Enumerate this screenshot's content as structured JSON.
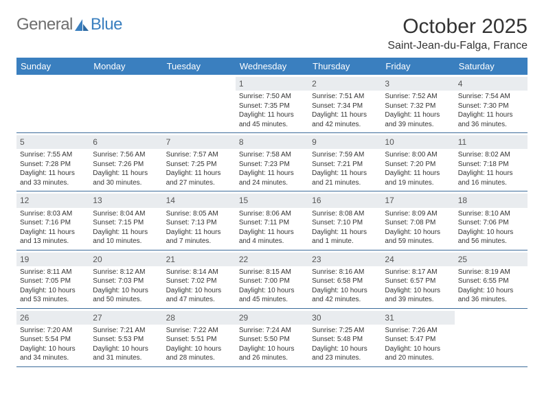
{
  "brand": {
    "text1": "General",
    "text2": "Blue"
  },
  "title": "October 2025",
  "location": "Saint-Jean-du-Falga, France",
  "colors": {
    "header_bg": "#3a7fbf",
    "header_text": "#ffffff",
    "daynum_bg": "#e9ecef",
    "row_border": "#3a6a99",
    "body_text": "#333333",
    "logo_gray": "#6d6d6d",
    "logo_blue": "#3a7fbf"
  },
  "fonts": {
    "title_pt": 30,
    "location_pt": 16,
    "dow_pt": 13,
    "daynum_pt": 12,
    "body_pt": 10
  },
  "days_of_week": [
    "Sunday",
    "Monday",
    "Tuesday",
    "Wednesday",
    "Thursday",
    "Friday",
    "Saturday"
  ],
  "weeks": [
    [
      {
        "n": "",
        "lines": []
      },
      {
        "n": "",
        "lines": []
      },
      {
        "n": "",
        "lines": []
      },
      {
        "n": "1",
        "lines": [
          "Sunrise: 7:50 AM",
          "Sunset: 7:35 PM",
          "Daylight: 11 hours",
          "and 45 minutes."
        ]
      },
      {
        "n": "2",
        "lines": [
          "Sunrise: 7:51 AM",
          "Sunset: 7:34 PM",
          "Daylight: 11 hours",
          "and 42 minutes."
        ]
      },
      {
        "n": "3",
        "lines": [
          "Sunrise: 7:52 AM",
          "Sunset: 7:32 PM",
          "Daylight: 11 hours",
          "and 39 minutes."
        ]
      },
      {
        "n": "4",
        "lines": [
          "Sunrise: 7:54 AM",
          "Sunset: 7:30 PM",
          "Daylight: 11 hours",
          "and 36 minutes."
        ]
      }
    ],
    [
      {
        "n": "5",
        "lines": [
          "Sunrise: 7:55 AM",
          "Sunset: 7:28 PM",
          "Daylight: 11 hours",
          "and 33 minutes."
        ]
      },
      {
        "n": "6",
        "lines": [
          "Sunrise: 7:56 AM",
          "Sunset: 7:26 PM",
          "Daylight: 11 hours",
          "and 30 minutes."
        ]
      },
      {
        "n": "7",
        "lines": [
          "Sunrise: 7:57 AM",
          "Sunset: 7:25 PM",
          "Daylight: 11 hours",
          "and 27 minutes."
        ]
      },
      {
        "n": "8",
        "lines": [
          "Sunrise: 7:58 AM",
          "Sunset: 7:23 PM",
          "Daylight: 11 hours",
          "and 24 minutes."
        ]
      },
      {
        "n": "9",
        "lines": [
          "Sunrise: 7:59 AM",
          "Sunset: 7:21 PM",
          "Daylight: 11 hours",
          "and 21 minutes."
        ]
      },
      {
        "n": "10",
        "lines": [
          "Sunrise: 8:00 AM",
          "Sunset: 7:20 PM",
          "Daylight: 11 hours",
          "and 19 minutes."
        ]
      },
      {
        "n": "11",
        "lines": [
          "Sunrise: 8:02 AM",
          "Sunset: 7:18 PM",
          "Daylight: 11 hours",
          "and 16 minutes."
        ]
      }
    ],
    [
      {
        "n": "12",
        "lines": [
          "Sunrise: 8:03 AM",
          "Sunset: 7:16 PM",
          "Daylight: 11 hours",
          "and 13 minutes."
        ]
      },
      {
        "n": "13",
        "lines": [
          "Sunrise: 8:04 AM",
          "Sunset: 7:15 PM",
          "Daylight: 11 hours",
          "and 10 minutes."
        ]
      },
      {
        "n": "14",
        "lines": [
          "Sunrise: 8:05 AM",
          "Sunset: 7:13 PM",
          "Daylight: 11 hours",
          "and 7 minutes."
        ]
      },
      {
        "n": "15",
        "lines": [
          "Sunrise: 8:06 AM",
          "Sunset: 7:11 PM",
          "Daylight: 11 hours",
          "and 4 minutes."
        ]
      },
      {
        "n": "16",
        "lines": [
          "Sunrise: 8:08 AM",
          "Sunset: 7:10 PM",
          "Daylight: 11 hours",
          "and 1 minute."
        ]
      },
      {
        "n": "17",
        "lines": [
          "Sunrise: 8:09 AM",
          "Sunset: 7:08 PM",
          "Daylight: 10 hours",
          "and 59 minutes."
        ]
      },
      {
        "n": "18",
        "lines": [
          "Sunrise: 8:10 AM",
          "Sunset: 7:06 PM",
          "Daylight: 10 hours",
          "and 56 minutes."
        ]
      }
    ],
    [
      {
        "n": "19",
        "lines": [
          "Sunrise: 8:11 AM",
          "Sunset: 7:05 PM",
          "Daylight: 10 hours",
          "and 53 minutes."
        ]
      },
      {
        "n": "20",
        "lines": [
          "Sunrise: 8:12 AM",
          "Sunset: 7:03 PM",
          "Daylight: 10 hours",
          "and 50 minutes."
        ]
      },
      {
        "n": "21",
        "lines": [
          "Sunrise: 8:14 AM",
          "Sunset: 7:02 PM",
          "Daylight: 10 hours",
          "and 47 minutes."
        ]
      },
      {
        "n": "22",
        "lines": [
          "Sunrise: 8:15 AM",
          "Sunset: 7:00 PM",
          "Daylight: 10 hours",
          "and 45 minutes."
        ]
      },
      {
        "n": "23",
        "lines": [
          "Sunrise: 8:16 AM",
          "Sunset: 6:58 PM",
          "Daylight: 10 hours",
          "and 42 minutes."
        ]
      },
      {
        "n": "24",
        "lines": [
          "Sunrise: 8:17 AM",
          "Sunset: 6:57 PM",
          "Daylight: 10 hours",
          "and 39 minutes."
        ]
      },
      {
        "n": "25",
        "lines": [
          "Sunrise: 8:19 AM",
          "Sunset: 6:55 PM",
          "Daylight: 10 hours",
          "and 36 minutes."
        ]
      }
    ],
    [
      {
        "n": "26",
        "lines": [
          "Sunrise: 7:20 AM",
          "Sunset: 5:54 PM",
          "Daylight: 10 hours",
          "and 34 minutes."
        ]
      },
      {
        "n": "27",
        "lines": [
          "Sunrise: 7:21 AM",
          "Sunset: 5:53 PM",
          "Daylight: 10 hours",
          "and 31 minutes."
        ]
      },
      {
        "n": "28",
        "lines": [
          "Sunrise: 7:22 AM",
          "Sunset: 5:51 PM",
          "Daylight: 10 hours",
          "and 28 minutes."
        ]
      },
      {
        "n": "29",
        "lines": [
          "Sunrise: 7:24 AM",
          "Sunset: 5:50 PM",
          "Daylight: 10 hours",
          "and 26 minutes."
        ]
      },
      {
        "n": "30",
        "lines": [
          "Sunrise: 7:25 AM",
          "Sunset: 5:48 PM",
          "Daylight: 10 hours",
          "and 23 minutes."
        ]
      },
      {
        "n": "31",
        "lines": [
          "Sunrise: 7:26 AM",
          "Sunset: 5:47 PM",
          "Daylight: 10 hours",
          "and 20 minutes."
        ]
      },
      {
        "n": "",
        "lines": []
      }
    ]
  ]
}
